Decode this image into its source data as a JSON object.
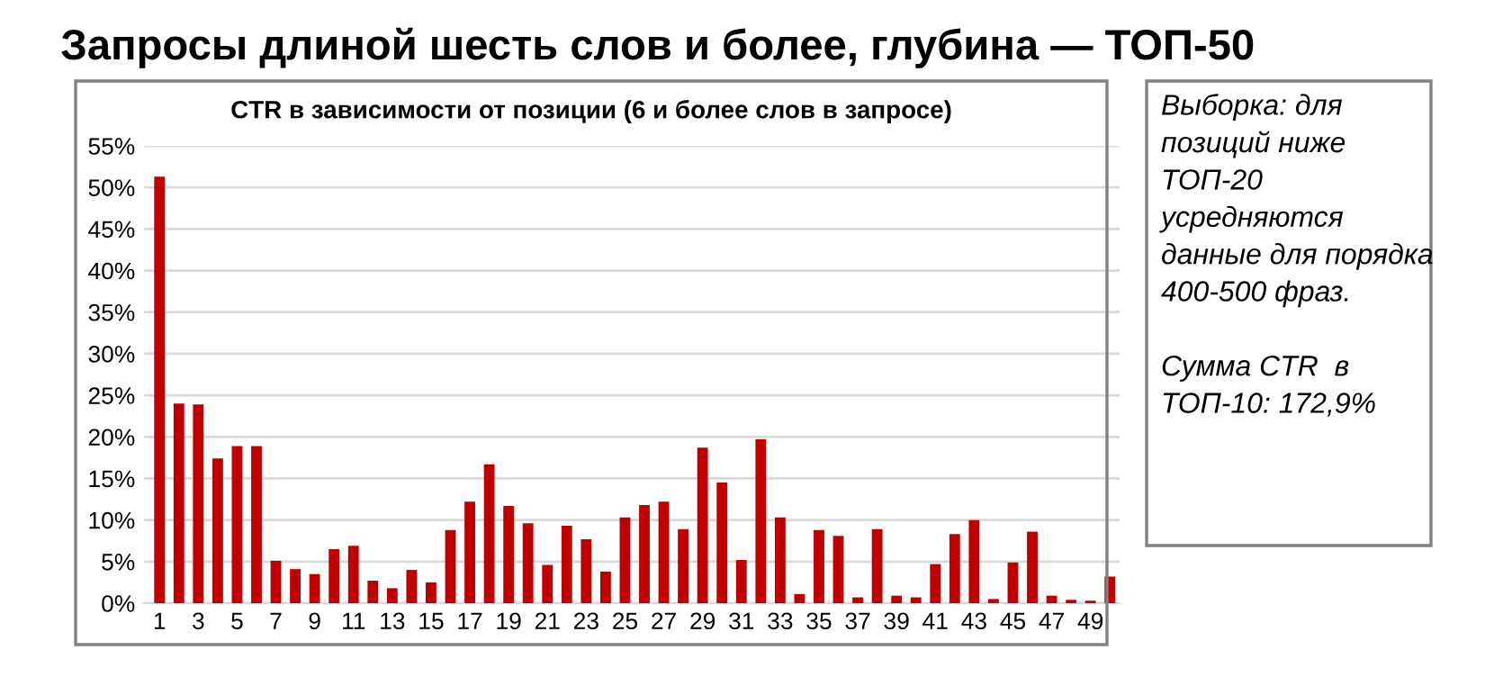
{
  "chart_data": {
    "type": "bar",
    "title": "Запросы длиной шесть слов и более, глубина — ТОП-50",
    "subtitle": "CTR в зависимости от позиции (6 и более слов в запросе)",
    "categories": [
      "1",
      null,
      "3",
      null,
      "5",
      null,
      "7",
      null,
      "9",
      null,
      "11",
      null,
      "13",
      null,
      "15",
      null,
      "17",
      null,
      "19",
      null,
      "21",
      null,
      "23",
      null,
      "25",
      null,
      "27",
      null,
      "29",
      null,
      "31",
      null,
      "33",
      null,
      "35",
      null,
      "37",
      null,
      "39",
      null,
      "41",
      null,
      "43",
      null,
      "45",
      null,
      "47",
      null,
      "49",
      null
    ],
    "values": [
      51.3,
      24.0,
      23.9,
      17.4,
      18.9,
      18.9,
      5.1,
      4.1,
      3.5,
      6.5,
      6.9,
      2.7,
      1.8,
      4.0,
      2.5,
      8.8,
      12.2,
      16.7,
      11.7,
      9.6,
      4.6,
      9.3,
      7.7,
      3.8,
      10.3,
      11.8,
      12.2,
      8.9,
      18.7,
      14.5,
      5.2,
      19.7,
      10.3,
      1.1,
      8.8,
      8.1,
      0.7,
      8.9,
      0.9,
      0.7,
      4.7,
      8.3,
      10.0,
      0.5,
      4.9,
      8.6,
      0.9,
      0.4,
      0.3,
      3.2
    ],
    "color": "#c00000",
    "ylim": [
      0,
      55
    ],
    "yticks": [
      {
        "value": 0,
        "label": "0%"
      },
      {
        "value": 5,
        "label": "5%"
      },
      {
        "value": 10,
        "label": "10%"
      },
      {
        "value": 15,
        "label": "15%"
      },
      {
        "value": 20,
        "label": "20%"
      },
      {
        "value": 25,
        "label": "25%"
      },
      {
        "value": 30,
        "label": "30%"
      },
      {
        "value": 35,
        "label": "35%"
      },
      {
        "value": 40,
        "label": "40%"
      },
      {
        "value": 45,
        "label": "45%"
      },
      {
        "value": 50,
        "label": "50%"
      },
      {
        "value": 55,
        "label": "55%"
      }
    ],
    "grid": "y",
    "annotations": [
      "Выборка: для позиций ниже ТОП-20 усредняются данные для порядка 400-500 фраз.\n\nСумма CTR  в ТОП-10: 172,9%"
    ]
  }
}
